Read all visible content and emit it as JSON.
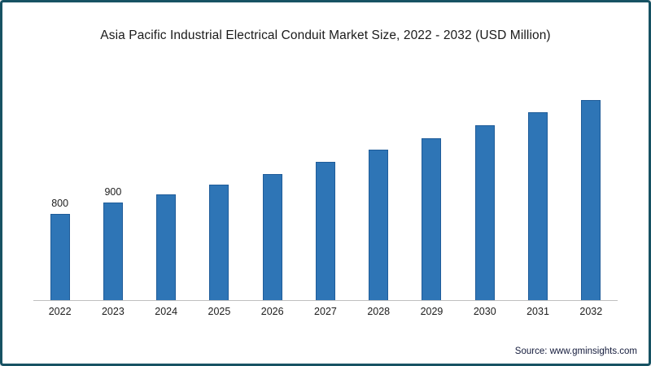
{
  "chart": {
    "title": "Asia Pacific Industrial Electrical Conduit Market Size, 2022 - 2032 (USD Million)",
    "source": "Source: www.gminsights.com"
  },
  "chart_data": {
    "type": "bar",
    "title": "Asia Pacific Industrial Electrical Conduit Market Size, 2022 - 2032 (USD Million)",
    "categories": [
      "2022",
      "2023",
      "2024",
      "2025",
      "2026",
      "2027",
      "2028",
      "2029",
      "2030",
      "2031",
      "2032"
    ],
    "values": [
      800,
      900,
      980,
      1070,
      1170,
      1280,
      1390,
      1500,
      1620,
      1740,
      1850
    ],
    "data_labels": [
      "800",
      "900",
      "",
      "",
      "",
      "",
      "",
      "",
      "",
      "",
      ""
    ],
    "xlabel": "",
    "ylabel": "",
    "ylim": [
      0,
      2250
    ],
    "grid": false,
    "legend": false,
    "bar_color": "#2e75b6",
    "bar_border_color": "#1f5c99",
    "axis_line_color": "#bfbfbf"
  },
  "frame": {
    "border_color": "#175263",
    "background": "#ffffff"
  }
}
